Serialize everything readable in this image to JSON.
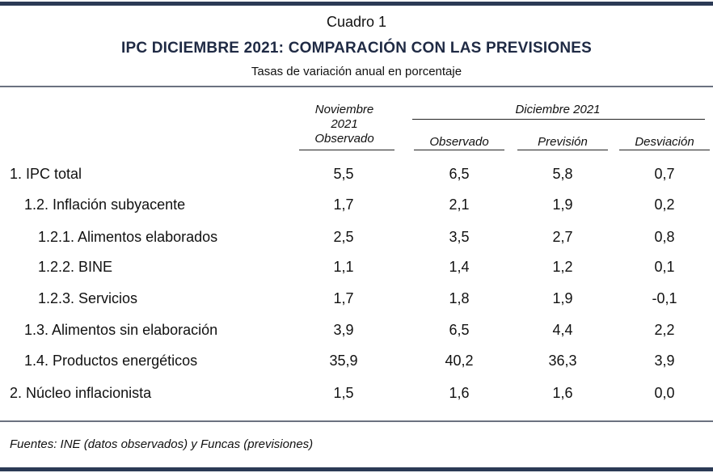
{
  "cuadro": "Cuadro 1",
  "title": "IPC DICIEMBRE 2021: COMPARACIÓN CON LAS PREVISIONES",
  "subtitle": "Tasas de variación anual en porcentaje",
  "header": {
    "nov_line1": "Noviembre",
    "nov_line2": "2021",
    "nov_line3": "Observado",
    "dic_group": "Diciembre 2021",
    "observado": "Observado",
    "prevision": "Previsión",
    "desviacion": "Desviación"
  },
  "rows": [
    {
      "label": "1. IPC total",
      "nov": "5,5",
      "obs": "6,5",
      "prev": "5,8",
      "desv": "0,7"
    },
    {
      "label": "1.2. Inflación subyacente",
      "nov": "1,7",
      "obs": "2,1",
      "prev": "1,9",
      "desv": "0,2"
    },
    {
      "label": "1.2.1. Alimentos elaborados",
      "nov": "2,5",
      "obs": "3,5",
      "prev": "2,7",
      "desv": "0,8"
    },
    {
      "label": "1.2.2. BINE",
      "nov": "1,1",
      "obs": "1,4",
      "prev": "1,2",
      "desv": "0,1"
    },
    {
      "label": "1.2.3. Servicios",
      "nov": "1,7",
      "obs": "1,8",
      "prev": "1,9",
      "desv": "-0,1"
    },
    {
      "label": "1.3. Alimentos sin elaboración",
      "nov": "3,9",
      "obs": "6,5",
      "prev": "4,4",
      "desv": "2,2"
    },
    {
      "label": "1.4. Productos energéticos",
      "nov": "35,9",
      "obs": "40,2",
      "prev": "36,3",
      "desv": "3,9"
    },
    {
      "label": "2. Núcleo inflacionista",
      "nov": "1,5",
      "obs": "1,6",
      "prev": "1,6",
      "desv": "0,0"
    }
  ],
  "footer": "Fuentes: INE (datos observados) y Funcas (previsiones)"
}
